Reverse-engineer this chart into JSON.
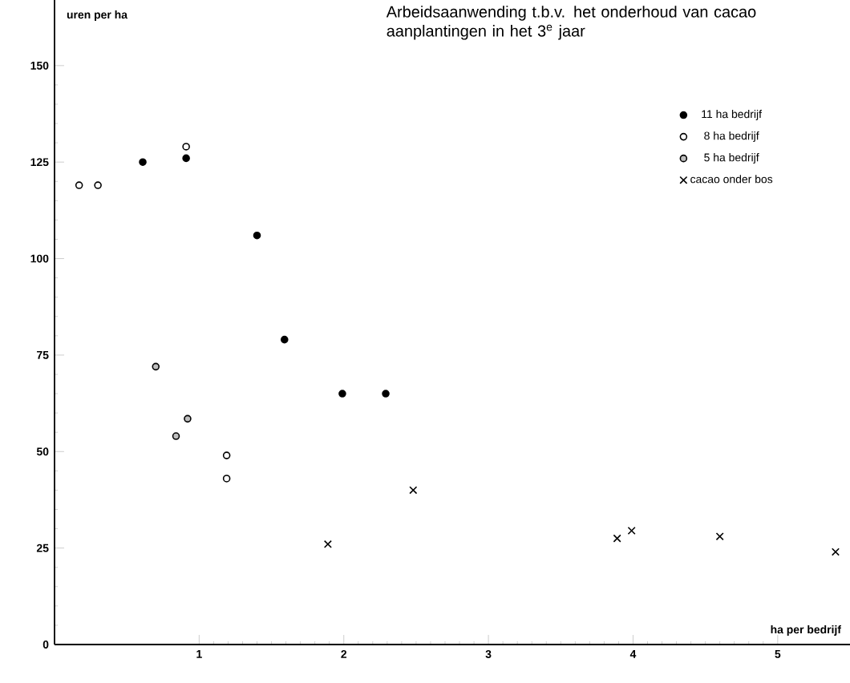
{
  "chart_data": {
    "type": "scatter",
    "title": "Arbeidsaanwending t.b.v. het onderhoud van cacao aanplantingen in het 3$^{e}$ jaar",
    "xlabel": "ha per bedrijf",
    "ylabel": "uren per ha",
    "xlim": [
      0,
      5.5
    ],
    "ylim": [
      0,
      167
    ],
    "xticks": [
      1,
      2,
      3,
      4,
      5
    ],
    "yticks": [
      0,
      25,
      50,
      75,
      100,
      125,
      150
    ],
    "legend": "top right",
    "grid": false,
    "series": [
      {
        "name": "11 ha bedrijf",
        "color": "#000000",
        "marker": "circle",
        "x": [
          0.61,
          0.91,
          1.4,
          1.59,
          1.99,
          2.29
        ],
        "values": [
          125,
          126,
          106,
          79,
          65,
          65
        ]
      },
      {
        "name": "8 ha bedrijf",
        "color": "#000000",
        "marker": "circle",
        "x": [
          0.91,
          1.19,
          1.19,
          0.17,
          0.3
        ],
        "values": [
          129,
          49,
          43,
          119,
          119
        ]
      },
      {
        "name": "5 ha bedrijf",
        "color": "#000000",
        "marker": "circle",
        "x": [
          0.92,
          0.84,
          0.7
        ],
        "values": [
          58.5,
          54,
          72
        ]
      },
      {
        "name": "cacao onder bos",
        "color": "#000000",
        "marker": "cross",
        "x": [
          1.89,
          2.48,
          3.89,
          3.99,
          4.6,
          5.4
        ],
        "values": [
          26,
          40,
          27.5,
          29.5,
          28,
          24
        ]
      }
    ]
  }
}
